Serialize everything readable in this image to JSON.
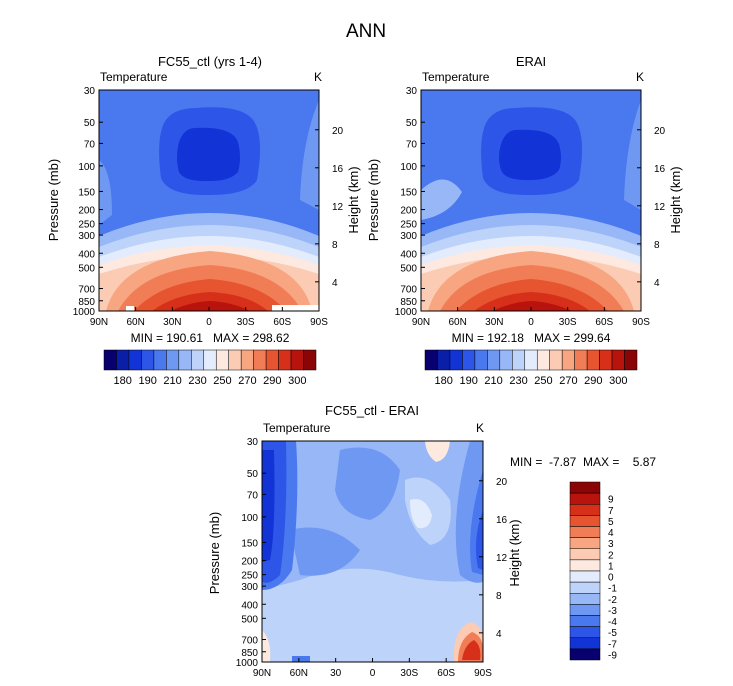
{
  "suptitle": "ANN",
  "colors": {
    "frame": "#000000",
    "background": "#ffffff"
  },
  "chart_data": [
    {
      "type": "heatmap",
      "title": "FC55_ctl (yrs 1-4)",
      "field_label": "Temperature",
      "units": "K",
      "ylabel": "Pressure (mb)",
      "y2label": "Height (km)",
      "x": {
        "range": [
          90,
          -90
        ],
        "ticks": [
          90,
          60,
          30,
          0,
          -30,
          -60,
          -90
        ],
        "tick_labels": [
          "90N",
          "60N",
          "30N",
          "0",
          "30S",
          "60S",
          "90S"
        ]
      },
      "y": {
        "scale": "log",
        "range": [
          1000,
          30
        ],
        "ticks": [
          30,
          50,
          70,
          100,
          150,
          200,
          250,
          300,
          400,
          500,
          700,
          850,
          1000
        ],
        "tick_labels": [
          "30",
          "50",
          "70",
          "100",
          "150",
          "200",
          "250",
          "300",
          "400",
          "500",
          "700",
          "850",
          "1000"
        ]
      },
      "y2_ticks": [
        "20",
        "16",
        "12",
        "8",
        "4"
      ],
      "stats": {
        "min": "190.61",
        "max": "298.62",
        "text": "MIN = 190.61   MAX = 298.62"
      },
      "colorbar": {
        "labels": [
          "180",
          "190",
          "210",
          "230",
          "250",
          "270",
          "290",
          "300"
        ],
        "colors": [
          "#08006e",
          "#0a1fa8",
          "#1233d6",
          "#2d56e8",
          "#4a78ee",
          "#6f98f2",
          "#97b7f6",
          "#bdd3f9",
          "#e2ecfd",
          "#fde9df",
          "#fbcbb3",
          "#f7a681",
          "#f17d56",
          "#e65430",
          "#d6301a",
          "#b8130c",
          "#8a0505"
        ]
      }
    },
    {
      "type": "heatmap",
      "title": "ERAI",
      "field_label": "Temperature",
      "units": "K",
      "ylabel": "Pressure (mb)",
      "y2label": "Height (km)",
      "x": {
        "range": [
          90,
          -90
        ],
        "ticks": [
          90,
          60,
          30,
          0,
          -30,
          -60,
          -90
        ],
        "tick_labels": [
          "90N",
          "60N",
          "30N",
          "0",
          "30S",
          "60S",
          "90S"
        ]
      },
      "y": {
        "scale": "log",
        "range": [
          1000,
          30
        ],
        "ticks": [
          30,
          50,
          70,
          100,
          150,
          200,
          250,
          300,
          400,
          500,
          700,
          850,
          1000
        ],
        "tick_labels": [
          "30",
          "50",
          "70",
          "100",
          "150",
          "200",
          "250",
          "300",
          "400",
          "500",
          "700",
          "850",
          "1000"
        ]
      },
      "y2_ticks": [
        "20",
        "16",
        "12",
        "8",
        "4"
      ],
      "stats": {
        "min": "192.18",
        "max": "299.64",
        "text": "MIN = 192.18   MAX = 299.64"
      },
      "colorbar": {
        "labels": [
          "180",
          "190",
          "210",
          "230",
          "250",
          "270",
          "290",
          "300"
        ],
        "colors": [
          "#08006e",
          "#0a1fa8",
          "#1233d6",
          "#2d56e8",
          "#4a78ee",
          "#6f98f2",
          "#97b7f6",
          "#bdd3f9",
          "#e2ecfd",
          "#fde9df",
          "#fbcbb3",
          "#f7a681",
          "#f17d56",
          "#e65430",
          "#d6301a",
          "#b8130c",
          "#8a0505"
        ]
      }
    },
    {
      "type": "heatmap",
      "title": "FC55_ctl - ERAI",
      "field_label": "Temperature",
      "units": "K",
      "ylabel": "Pressure (mb)",
      "y2label": "Height (km)",
      "x": {
        "range": [
          90,
          -90
        ],
        "ticks": [
          90,
          60,
          30,
          0,
          -30,
          -60,
          -90
        ],
        "tick_labels": [
          "90N",
          "60N",
          "30",
          "0",
          "30S",
          "60S",
          "90S"
        ]
      },
      "y": {
        "scale": "log",
        "range": [
          1000,
          30
        ],
        "ticks": [
          30,
          50,
          70,
          100,
          150,
          200,
          250,
          300,
          400,
          500,
          700,
          850,
          1000
        ],
        "tick_labels": [
          "30",
          "50",
          "70",
          "100",
          "150",
          "200",
          "250",
          "300",
          "400",
          "500",
          "700",
          "850",
          "1000"
        ]
      },
      "y2_ticks": [
        "20",
        "16",
        "12",
        "8",
        "4"
      ],
      "stats": {
        "min": "-7.87",
        "max": "5.87",
        "text": "MIN =  -7.87  MAX =    5.87"
      },
      "colorbar": {
        "labels": [
          "9",
          "7",
          "5",
          "4",
          "3",
          "2",
          "1",
          "0",
          "-1",
          "-2",
          "-3",
          "-4",
          "-5",
          "-7",
          "-9"
        ],
        "colors": [
          "#8a0505",
          "#b8130c",
          "#d6301a",
          "#e65430",
          "#f17d56",
          "#f7a681",
          "#fbcbb3",
          "#fde9df",
          "#e2ecfd",
          "#bdd3f9",
          "#97b7f6",
          "#6f98f2",
          "#4a78ee",
          "#2d56e8",
          "#1233d6",
          "#08006e"
        ]
      }
    }
  ]
}
